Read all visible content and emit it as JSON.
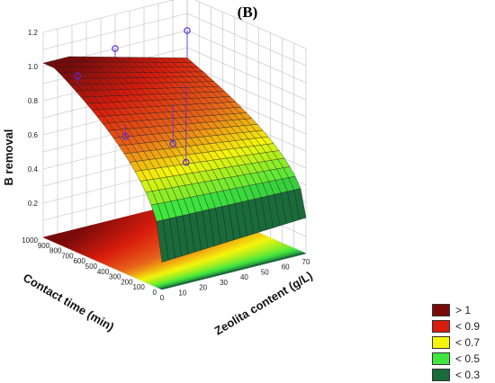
{
  "panel_label": "(B)",
  "colors": {
    "dark_red": "#7a0a0a",
    "red": "#d91c0c",
    "orange": "#e8661a",
    "yellow": "#f5f50a",
    "green": "#3ee63e",
    "dark_green": "#1a6b3a",
    "grid": "#bdbdbd",
    "point": "#5a2bd8"
  },
  "chart_data": {
    "type": "surface",
    "title": "",
    "xlabel": "Zeolita content (g/L)",
    "ylabel": "Contact time (min)",
    "zlabel": "B removal",
    "x_ticks": [
      "0",
      "10",
      "20",
      "30",
      "40",
      "50",
      "60",
      "70"
    ],
    "y_ticks": [
      "0",
      "100",
      "200",
      "300",
      "400",
      "500",
      "600",
      "700",
      "800",
      "900",
      "1000"
    ],
    "z_ticks": [
      "0.2",
      "0.4",
      "0.6",
      "0.8",
      "1.0",
      "1.2"
    ],
    "xlim": [
      0,
      70
    ],
    "ylim": [
      0,
      1000
    ],
    "zlim": [
      0.2,
      1.2
    ],
    "grid": true,
    "legend_position": "bottom-right",
    "legend": [
      {
        "label": "> 1",
        "color": "#7a0a0a"
      },
      {
        "label": "< 0.9",
        "color": "#d91c0c"
      },
      {
        "label": "< 0.7",
        "color": "#f5f50a"
      },
      {
        "label": "< 0.5",
        "color": "#3ee63e"
      },
      {
        "label": "< 0.3",
        "color": "#1a6b3a"
      }
    ],
    "points": [
      {
        "x": 4,
        "y": 780,
        "z": 1.0
      },
      {
        "x": 35,
        "y": 1000,
        "z": 1.0
      },
      {
        "x": 70,
        "y": 1000,
        "z": 1.0
      },
      {
        "x": 10,
        "y": 480,
        "z": 0.72
      },
      {
        "x": 40,
        "y": 600,
        "z": 0.55
      },
      {
        "x": 55,
        "y": 750,
        "z": 0.35
      }
    ]
  }
}
